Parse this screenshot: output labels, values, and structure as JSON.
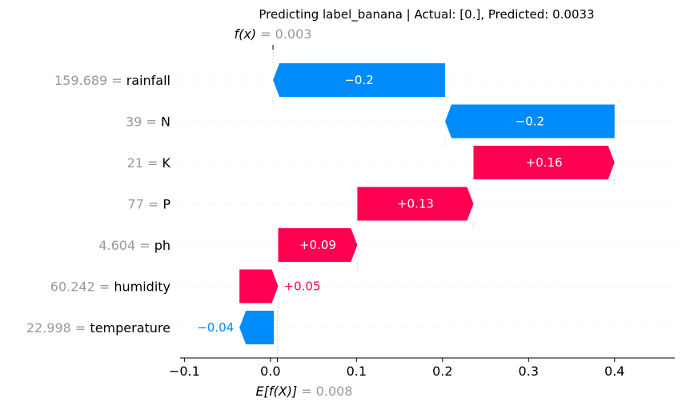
{
  "chart_data": {
    "type": "waterfall",
    "title": "Predicting label_banana | Actual: [0.], Predicted: 0.0033",
    "base_value_label": "E[f(X)]",
    "base_value_text": "= 0.008",
    "base_value": 0.008,
    "output_value_label": "f(x)",
    "output_value_text": "= 0.003",
    "output_value": 0.003,
    "xlim": [
      -0.105,
      0.47
    ],
    "x_ticks": [
      -0.1,
      0.0,
      0.1,
      0.2,
      0.3,
      0.4
    ],
    "x_tick_labels": [
      "−0.1",
      "0.0",
      "0.1",
      "0.2",
      "0.3",
      "0.4"
    ],
    "features": [
      {
        "name": "rainfall",
        "value": "159.689",
        "contribution": -0.2,
        "label": "−0.2",
        "start": 0.203,
        "end": 0.003
      },
      {
        "name": "N",
        "value": "39",
        "contribution": -0.2,
        "label": "−0.2",
        "start": 0.4,
        "end": 0.203
      },
      {
        "name": "K",
        "value": "21",
        "contribution": 0.16,
        "label": "+0.16",
        "start": 0.236,
        "end": 0.4
      },
      {
        "name": "P",
        "value": "77",
        "contribution": 0.13,
        "label": "+0.13",
        "start": 0.101,
        "end": 0.236
      },
      {
        "name": "ph",
        "value": "4.604",
        "contribution": 0.09,
        "label": "+0.09",
        "start": 0.009,
        "end": 0.101
      },
      {
        "name": "humidity",
        "value": "60.242",
        "contribution": 0.05,
        "label": "+0.05",
        "start": -0.036,
        "end": 0.009
      },
      {
        "name": "temperature",
        "value": "22.998",
        "contribution": -0.04,
        "label": "−0.04",
        "start": 0.004,
        "end": -0.036
      }
    ],
    "colors": {
      "positive": "#ff0051",
      "negative": "#008bfb",
      "gray_text": "#999999"
    },
    "grid": "dotted horizontal"
  }
}
